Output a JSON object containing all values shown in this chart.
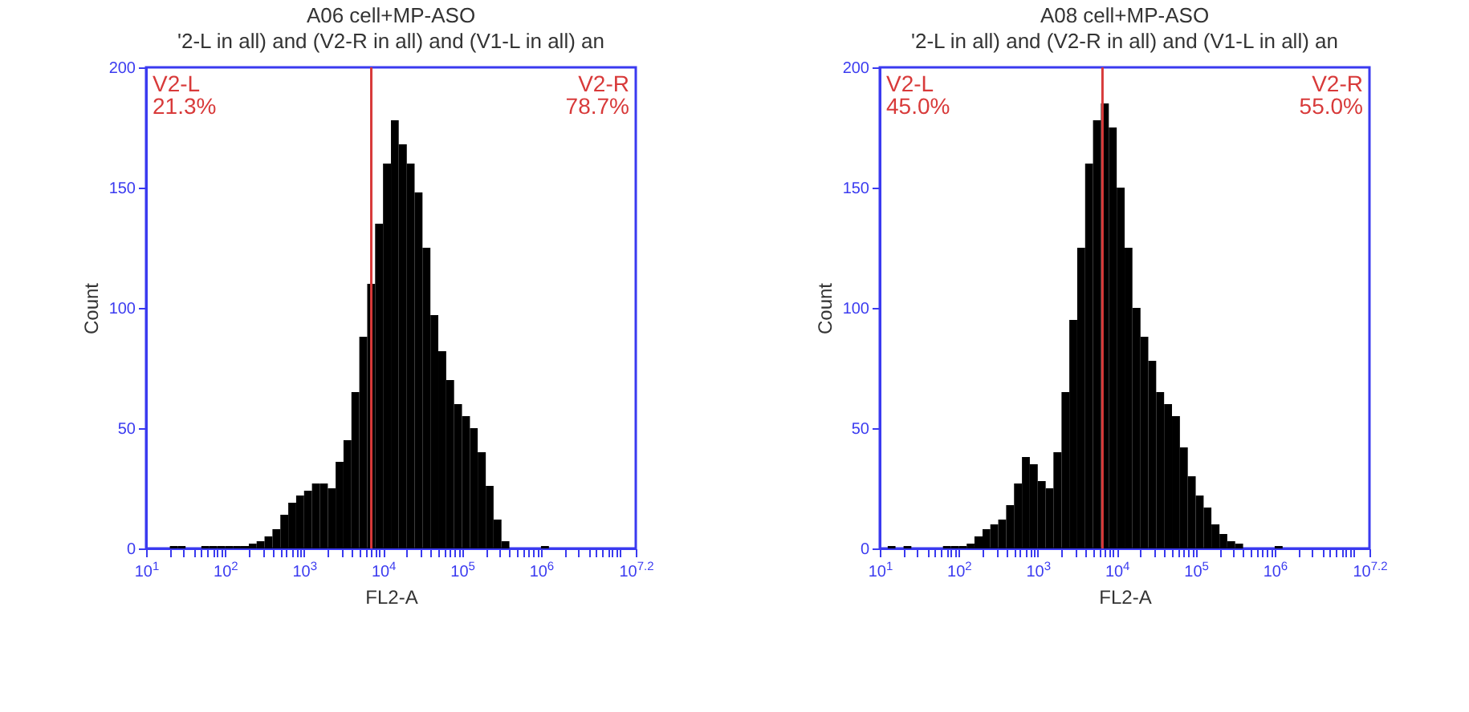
{
  "chart_data": [
    {
      "type": "histogram",
      "title": "A06 cell+MP-ASO",
      "subtitle": "'2-L in all) and (V2-R in all) and (V1-L in all) an",
      "xlabel": "FL2-A",
      "ylabel": "Count",
      "color": "#000000",
      "log": "x",
      "bins": [
        10,
        12.6,
        15.8,
        20,
        25.1,
        31.6,
        39.8,
        50.1,
        63.1,
        79.4,
        100,
        126,
        158,
        200,
        251,
        316,
        398,
        501,
        631,
        794,
        1000,
        1260,
        1580,
        2000,
        2510,
        3160,
        3980,
        5010,
        6310,
        7940,
        10000,
        12600,
        15800,
        20000,
        25100,
        31600,
        39800,
        50100,
        63100,
        79400,
        100000,
        126000,
        158000,
        200000,
        251000,
        316000,
        398000,
        501000,
        631000,
        794000,
        1000000,
        1260000,
        1580000,
        2000000,
        2510000,
        3160000,
        3980000,
        5010000,
        6310000,
        7940000,
        10000000,
        12600000,
        15850000
      ],
      "values": [
        0,
        0,
        0,
        1,
        1,
        0,
        0,
        1,
        1,
        1,
        1,
        1,
        1,
        2,
        3,
        5,
        8,
        14,
        19,
        22,
        24,
        27,
        27,
        25,
        36,
        45,
        65,
        88,
        110,
        135,
        160,
        178,
        168,
        160,
        148,
        125,
        97,
        82,
        70,
        60,
        55,
        50,
        40,
        26,
        12,
        3,
        0,
        0,
        0,
        0,
        1,
        0,
        0,
        0,
        0,
        0,
        0,
        0,
        0,
        0,
        0,
        0
      ],
      "xlim": [
        10,
        15850000
      ],
      "xticks": [
        {
          "value": 10,
          "label": "10$^{1}$"
        },
        {
          "value": 20,
          "label": null
        },
        {
          "value": 30,
          "label": null
        },
        {
          "value": 40,
          "label": null
        },
        {
          "value": 50,
          "label": null
        },
        {
          "value": 60,
          "label": null
        },
        {
          "value": 70,
          "label": null
        },
        {
          "value": 80,
          "label": null
        },
        {
          "value": 90,
          "label": null
        },
        {
          "value": 100,
          "label": "10$^{2}$"
        },
        {
          "value": 200,
          "label": null
        },
        {
          "value": 300,
          "label": null
        },
        {
          "value": 400,
          "label": null
        },
        {
          "value": 500,
          "label": null
        },
        {
          "value": 600,
          "label": null
        },
        {
          "value": 700,
          "label": null
        },
        {
          "value": 800,
          "label": null
        },
        {
          "value": 900,
          "label": null
        },
        {
          "value": 1000,
          "label": "10$^{3}$"
        },
        {
          "value": 2000,
          "label": null
        },
        {
          "value": 3000,
          "label": null
        },
        {
          "value": 4000,
          "label": null
        },
        {
          "value": 5000,
          "label": null
        },
        {
          "value": 6000,
          "label": null
        },
        {
          "value": 7000,
          "label": null
        },
        {
          "value": 8000,
          "label": null
        },
        {
          "value": 9000,
          "label": null
        },
        {
          "value": 10000,
          "label": "10$^{4}$"
        },
        {
          "value": 20000,
          "label": null
        },
        {
          "value": 30000,
          "label": null
        },
        {
          "value": 40000,
          "label": null
        },
        {
          "value": 50000,
          "label": null
        },
        {
          "value": 60000,
          "label": null
        },
        {
          "value": 70000,
          "label": null
        },
        {
          "value": 80000,
          "label": null
        },
        {
          "value": 90000,
          "label": null
        },
        {
          "value": 100000,
          "label": "10$^{5}$"
        },
        {
          "value": 200000,
          "label": null
        },
        {
          "value": 300000,
          "label": null
        },
        {
          "value": 400000,
          "label": null
        },
        {
          "value": 500000,
          "label": null
        },
        {
          "value": 600000,
          "label": null
        },
        {
          "value": 700000,
          "label": null
        },
        {
          "value": 800000,
          "label": null
        },
        {
          "value": 900000,
          "label": null
        },
        {
          "value": 1000000,
          "label": "10$^{6}$"
        },
        {
          "value": 2000000,
          "label": null
        },
        {
          "value": 3000000,
          "label": null
        },
        {
          "value": 4000000,
          "label": null
        },
        {
          "value": 5000000,
          "label": null
        },
        {
          "value": 6000000,
          "label": null
        },
        {
          "value": 7000000,
          "label": null
        },
        {
          "value": 8000000,
          "label": null
        },
        {
          "value": 9000000,
          "label": null
        },
        {
          "value": 10000000,
          "label": null
        },
        {
          "value": 15850000,
          "label": "10$^{7.2}$"
        }
      ],
      "ylim": [
        0,
        200
      ],
      "yticks": [
        0,
        50,
        100,
        150,
        200
      ],
      "ref_lines": [
        {
          "axis": "x",
          "value": 7100,
          "color": "#d83a3a"
        }
      ],
      "annotations": [
        "V2-L\n21.3%",
        "V2-R\n78.7%"
      ]
    },
    {
      "type": "histogram",
      "title": "A08 cell+MP-ASO",
      "subtitle": "'2-L in all) and (V2-R in all) and (V1-L in all) an",
      "xlabel": "FL2-A",
      "ylabel": "Count",
      "color": "#000000",
      "log": "x",
      "bins": [
        10,
        12.6,
        15.8,
        20,
        25.1,
        31.6,
        39.8,
        50.1,
        63.1,
        79.4,
        100,
        126,
        158,
        200,
        251,
        316,
        398,
        501,
        631,
        794,
        1000,
        1260,
        1580,
        2000,
        2510,
        3160,
        3980,
        5010,
        6310,
        7940,
        10000,
        12600,
        15800,
        20000,
        25100,
        31600,
        39800,
        50100,
        63100,
        79400,
        100000,
        126000,
        158000,
        200000,
        251000,
        316000,
        398000,
        501000,
        631000,
        794000,
        1000000,
        1260000,
        1580000,
        2000000,
        2510000,
        3160000,
        3980000,
        5010000,
        6310000,
        7940000,
        10000000,
        12600000,
        15850000
      ],
      "values": [
        0,
        1,
        0,
        1,
        0,
        0,
        0,
        0,
        1,
        1,
        1,
        2,
        5,
        8,
        10,
        12,
        18,
        27,
        38,
        35,
        28,
        25,
        40,
        65,
        95,
        125,
        160,
        178,
        185,
        175,
        150,
        125,
        100,
        88,
        78,
        65,
        60,
        55,
        42,
        30,
        22,
        17,
        10,
        6,
        3,
        2,
        0,
        0,
        0,
        0,
        1,
        0,
        0,
        0,
        0,
        0,
        0,
        0,
        0,
        0,
        0,
        0
      ],
      "xlim": [
        10,
        15850000
      ],
      "xticks": [
        {
          "value": 10,
          "label": "10$^{1}$"
        },
        {
          "value": 20,
          "label": null
        },
        {
          "value": 30,
          "label": null
        },
        {
          "value": 40,
          "label": null
        },
        {
          "value": 50,
          "label": null
        },
        {
          "value": 60,
          "label": null
        },
        {
          "value": 70,
          "label": null
        },
        {
          "value": 80,
          "label": null
        },
        {
          "value": 90,
          "label": null
        },
        {
          "value": 100,
          "label": "10$^{2}$"
        },
        {
          "value": 200,
          "label": null
        },
        {
          "value": 300,
          "label": null
        },
        {
          "value": 400,
          "label": null
        },
        {
          "value": 500,
          "label": null
        },
        {
          "value": 600,
          "label": null
        },
        {
          "value": 700,
          "label": null
        },
        {
          "value": 800,
          "label": null
        },
        {
          "value": 900,
          "label": null
        },
        {
          "value": 1000,
          "label": "10$^{3}$"
        },
        {
          "value": 2000,
          "label": null
        },
        {
          "value": 3000,
          "label": null
        },
        {
          "value": 4000,
          "label": null
        },
        {
          "value": 5000,
          "label": null
        },
        {
          "value": 6000,
          "label": null
        },
        {
          "value": 7000,
          "label": null
        },
        {
          "value": 8000,
          "label": null
        },
        {
          "value": 9000,
          "label": null
        },
        {
          "value": 10000,
          "label": "10$^{4}$"
        },
        {
          "value": 20000,
          "label": null
        },
        {
          "value": 30000,
          "label": null
        },
        {
          "value": 40000,
          "label": null
        },
        {
          "value": 50000,
          "label": null
        },
        {
          "value": 60000,
          "label": null
        },
        {
          "value": 70000,
          "label": null
        },
        {
          "value": 80000,
          "label": null
        },
        {
          "value": 90000,
          "label": null
        },
        {
          "value": 100000,
          "label": "10$^{5}$"
        },
        {
          "value": 200000,
          "label": null
        },
        {
          "value": 300000,
          "label": null
        },
        {
          "value": 400000,
          "label": null
        },
        {
          "value": 500000,
          "label": null
        },
        {
          "value": 600000,
          "label": null
        },
        {
          "value": 700000,
          "label": null
        },
        {
          "value": 800000,
          "label": null
        },
        {
          "value": 900000,
          "label": null
        },
        {
          "value": 1000000,
          "label": "10$^{6}$"
        },
        {
          "value": 2000000,
          "label": null
        },
        {
          "value": 3000000,
          "label": null
        },
        {
          "value": 4000000,
          "label": null
        },
        {
          "value": 5000000,
          "label": null
        },
        {
          "value": 6000000,
          "label": null
        },
        {
          "value": 7000000,
          "label": null
        },
        {
          "value": 8000000,
          "label": null
        },
        {
          "value": 9000000,
          "label": null
        },
        {
          "value": 10000000,
          "label": null
        },
        {
          "value": 15850000,
          "label": "10$^{7.2}$"
        }
      ],
      "ylim": [
        0,
        200
      ],
      "yticks": [
        0,
        50,
        100,
        150,
        200
      ],
      "ref_lines": [
        {
          "axis": "x",
          "value": 6600,
          "color": "#d83a3a"
        }
      ],
      "annotations": [
        "V2-L\n45.0%",
        "V2-R\n55.0%"
      ]
    }
  ]
}
